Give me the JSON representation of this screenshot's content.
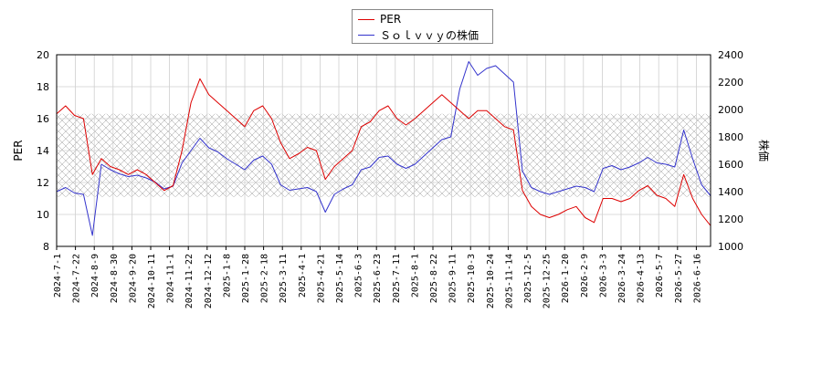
{
  "chart_data": {
    "type": "line",
    "ylabel_left": "PER",
    "ylabel_right": "株価",
    "ylim_left": [
      8,
      20
    ],
    "ylim_right": [
      1000,
      2400
    ],
    "yticks_left": [
      "8",
      "10",
      "12",
      "14",
      "16",
      "18",
      "20"
    ],
    "yticks_right": [
      "1000",
      "1200",
      "1400",
      "1600",
      "1800",
      "2000",
      "2200",
      "2400"
    ],
    "x_tick_labels": [
      "2024-7-1",
      "2024-7-22",
      "2024-8-9",
      "2024-8-30",
      "2024-9-20",
      "2024-10-11",
      "2024-11-1",
      "2024-11-22",
      "2024-12-12",
      "2025-1-8",
      "2025-1-28",
      "2025-2-18",
      "2025-3-11",
      "2025-4-1",
      "2025-4-21",
      "2025-5-14",
      "2025-6-3",
      "2025-6-23",
      "2025-7-11",
      "2025-8-1",
      "2025-8-22",
      "2025-9-11",
      "2025-10-3",
      "2025-10-24",
      "2025-11-14",
      "2025-12-5",
      "2025-12-25",
      "2026-1-20",
      "2026-2-9",
      "2026-3-3",
      "2026-3-24",
      "2026-4-13",
      "2026-5-7",
      "2026-5-27",
      "2026-6-16"
    ],
    "grid": true,
    "legend_position": "top-center",
    "band": {
      "axis": "left",
      "from": 11.1,
      "to": 16.3
    },
    "series": [
      {
        "name": "PER",
        "color": "#dd0000",
        "axis": "left",
        "values": [
          16.3,
          16.8,
          16.2,
          16.0,
          12.5,
          13.5,
          13.0,
          12.8,
          12.5,
          12.8,
          12.5,
          12.0,
          11.5,
          11.8,
          14.0,
          17.0,
          18.5,
          17.5,
          17.0,
          16.5,
          16.0,
          15.5,
          16.5,
          16.8,
          16.0,
          14.5,
          13.5,
          13.8,
          14.2,
          14.0,
          12.2,
          13.0,
          13.5,
          14.0,
          15.5,
          15.8,
          16.5,
          16.8,
          16.0,
          15.6,
          16.0,
          16.5,
          17.0,
          17.5,
          17.0,
          16.5,
          16.0,
          16.5,
          16.5,
          16.0,
          15.5,
          15.3,
          11.5,
          10.5,
          10.0,
          9.8,
          10.0,
          10.3,
          10.5,
          9.8,
          9.5,
          11.0,
          11.0,
          10.8,
          11.0,
          11.5,
          11.8,
          11.2,
          11.0,
          10.5,
          12.5,
          11.0,
          10.0,
          9.3
        ]
      },
      {
        "name": "Ｓｏｌｖｖｙの株価",
        "color": "#3333cc",
        "axis": "right",
        "values": [
          1400,
          1430,
          1390,
          1380,
          1080,
          1600,
          1560,
          1530,
          1510,
          1520,
          1500,
          1470,
          1420,
          1440,
          1610,
          1700,
          1790,
          1720,
          1690,
          1640,
          1600,
          1560,
          1630,
          1660,
          1600,
          1450,
          1410,
          1420,
          1430,
          1400,
          1250,
          1380,
          1420,
          1450,
          1560,
          1580,
          1650,
          1660,
          1600,
          1570,
          1600,
          1660,
          1720,
          1780,
          1800,
          2150,
          2350,
          2250,
          2300,
          2320,
          2260,
          2200,
          1550,
          1430,
          1400,
          1380,
          1400,
          1420,
          1440,
          1430,
          1400,
          1570,
          1590,
          1560,
          1580,
          1610,
          1650,
          1610,
          1600,
          1580,
          1850,
          1640,
          1450,
          1370
        ]
      }
    ]
  }
}
